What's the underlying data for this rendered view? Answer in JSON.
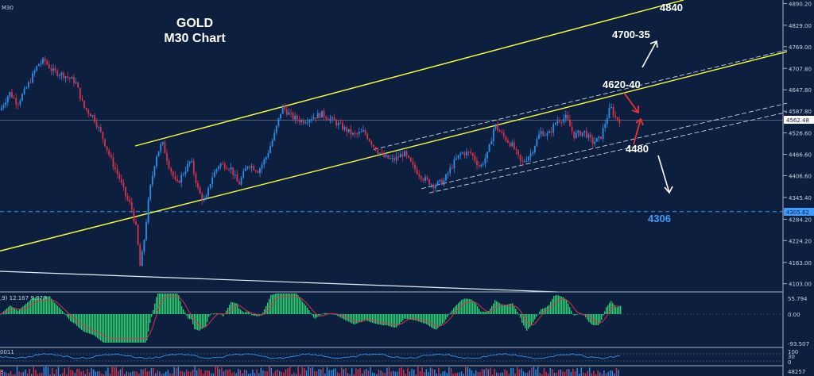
{
  "timeframe_label": "M30",
  "colors": {
    "background": "#0c1f3e",
    "bull": "#2f8fe8",
    "bear": "#d9334b",
    "channel": "#ffff3c",
    "support_dashed": "#3f9cff",
    "hist": "#2ecc71",
    "signal": "#d9334b",
    "annotation": "#ffffff",
    "arrow_red": "#e8323a"
  },
  "chart_data": {
    "type": "candlestick",
    "title": "GOLD",
    "subtitle": "M30 Chart",
    "price_axis": {
      "ylim": [
        4080,
        4900
      ],
      "ticks": [
        "4890.20",
        "4829.00",
        "4769.00",
        "4707.80",
        "4647.80",
        "4587.80",
        "4526.60",
        "4466.60",
        "4406.60",
        "4345.40",
        "4284.20",
        "4224.20",
        "4163.00",
        "4103.00"
      ]
    },
    "current_price": "4562.48",
    "support_level_label": "4305.62",
    "path_points": [
      [
        0,
        4590
      ],
      [
        12,
        4640
      ],
      [
        22,
        4610
      ],
      [
        35,
        4660
      ],
      [
        48,
        4720
      ],
      [
        56,
        4730
      ],
      [
        66,
        4700
      ],
      [
        80,
        4690
      ],
      [
        95,
        4670
      ],
      [
        105,
        4600
      ],
      [
        118,
        4570
      ],
      [
        128,
        4520
      ],
      [
        140,
        4450
      ],
      [
        150,
        4400
      ],
      [
        158,
        4350
      ],
      [
        165,
        4320
      ],
      [
        172,
        4250
      ],
      [
        176,
        4150
      ],
      [
        180,
        4200
      ],
      [
        188,
        4360
      ],
      [
        196,
        4460
      ],
      [
        204,
        4500
      ],
      [
        212,
        4440
      ],
      [
        222,
        4380
      ],
      [
        232,
        4420
      ],
      [
        240,
        4450
      ],
      [
        250,
        4360
      ],
      [
        258,
        4330
      ],
      [
        266,
        4400
      ],
      [
        276,
        4440
      ],
      [
        290,
        4430
      ],
      [
        300,
        4380
      ],
      [
        312,
        4440
      ],
      [
        325,
        4420
      ],
      [
        335,
        4460
      ],
      [
        345,
        4520
      ],
      [
        355,
        4600
      ],
      [
        368,
        4570
      ],
      [
        380,
        4560
      ],
      [
        392,
        4570
      ],
      [
        405,
        4580
      ],
      [
        420,
        4560
      ],
      [
        432,
        4540
      ],
      [
        445,
        4520
      ],
      [
        458,
        4530
      ],
      [
        470,
        4490
      ],
      [
        482,
        4460
      ],
      [
        495,
        4450
      ],
      [
        508,
        4470
      ],
      [
        520,
        4430
      ],
      [
        532,
        4400
      ],
      [
        545,
        4380
      ],
      [
        558,
        4390
      ],
      [
        570,
        4440
      ],
      [
        580,
        4470
      ],
      [
        592,
        4470
      ],
      [
        604,
        4430
      ],
      [
        614,
        4470
      ],
      [
        622,
        4550
      ],
      [
        632,
        4520
      ],
      [
        645,
        4490
      ],
      [
        656,
        4440
      ],
      [
        668,
        4470
      ],
      [
        680,
        4530
      ],
      [
        690,
        4520
      ],
      [
        700,
        4560
      ],
      [
        712,
        4570
      ],
      [
        722,
        4520
      ],
      [
        735,
        4530
      ],
      [
        745,
        4500
      ],
      [
        755,
        4510
      ],
      [
        762,
        4560
      ],
      [
        768,
        4600
      ],
      [
        774,
        4570
      ],
      [
        780,
        4562
      ]
    ],
    "channels": [
      {
        "style": "yellow",
        "from": [
          170,
          4490
        ],
        "to": [
          860,
          4900
        ]
      },
      {
        "style": "yellow",
        "from": [
          0,
          4195
        ],
        "to": [
          990,
          4755
        ]
      },
      {
        "style": "white-dashed",
        "from": [
          470,
          4480
        ],
        "to": [
          990,
          4760
        ]
      },
      {
        "style": "white-dashed",
        "from": [
          530,
          4370
        ],
        "to": [
          990,
          4610
        ]
      },
      {
        "style": "white-dashed",
        "from": [
          540,
          4358
        ],
        "to": [
          990,
          4585
        ]
      }
    ],
    "support_line": 4305.62,
    "annotations": [
      "4840",
      "4700-35",
      "4620-40",
      "4480",
      "4306"
    ],
    "macd": {
      "label": ",9) 12.167 9.970",
      "ticks": [
        "55.794",
        "0.00",
        "-93.507"
      ]
    },
    "indicator2": {
      "label": "0011",
      "ticks": [
        "100",
        "30",
        "0"
      ]
    },
    "indicator3": {
      "label": "3",
      "ticks": [
        "48257"
      ]
    }
  }
}
